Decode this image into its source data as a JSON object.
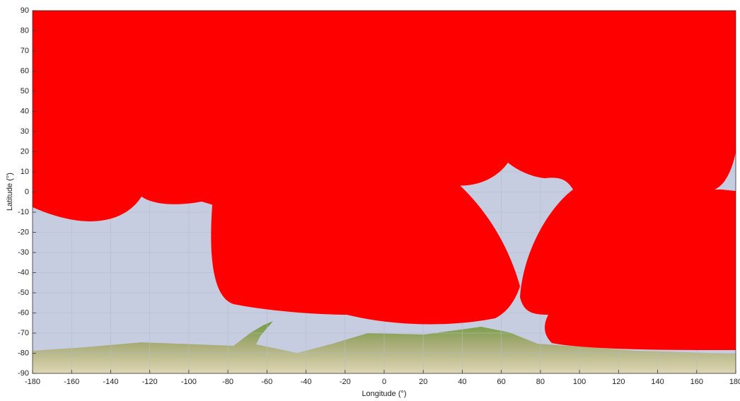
{
  "chart_data": {
    "type": "map",
    "xlabel": "Longitude (°)",
    "ylabel": "Latitude (°)",
    "xlim": [
      -180,
      180
    ],
    "ylim": [
      -90,
      90
    ],
    "xticks": [
      -180,
      -160,
      -140,
      -120,
      -100,
      -80,
      -60,
      -40,
      -20,
      0,
      20,
      40,
      60,
      80,
      100,
      120,
      140,
      160,
      180
    ],
    "yticks": [
      -90,
      -80,
      -70,
      -60,
      -50,
      -40,
      -30,
      -20,
      -10,
      0,
      10,
      20,
      30,
      40,
      50,
      60,
      70,
      80,
      90
    ],
    "grid": true
  }
}
